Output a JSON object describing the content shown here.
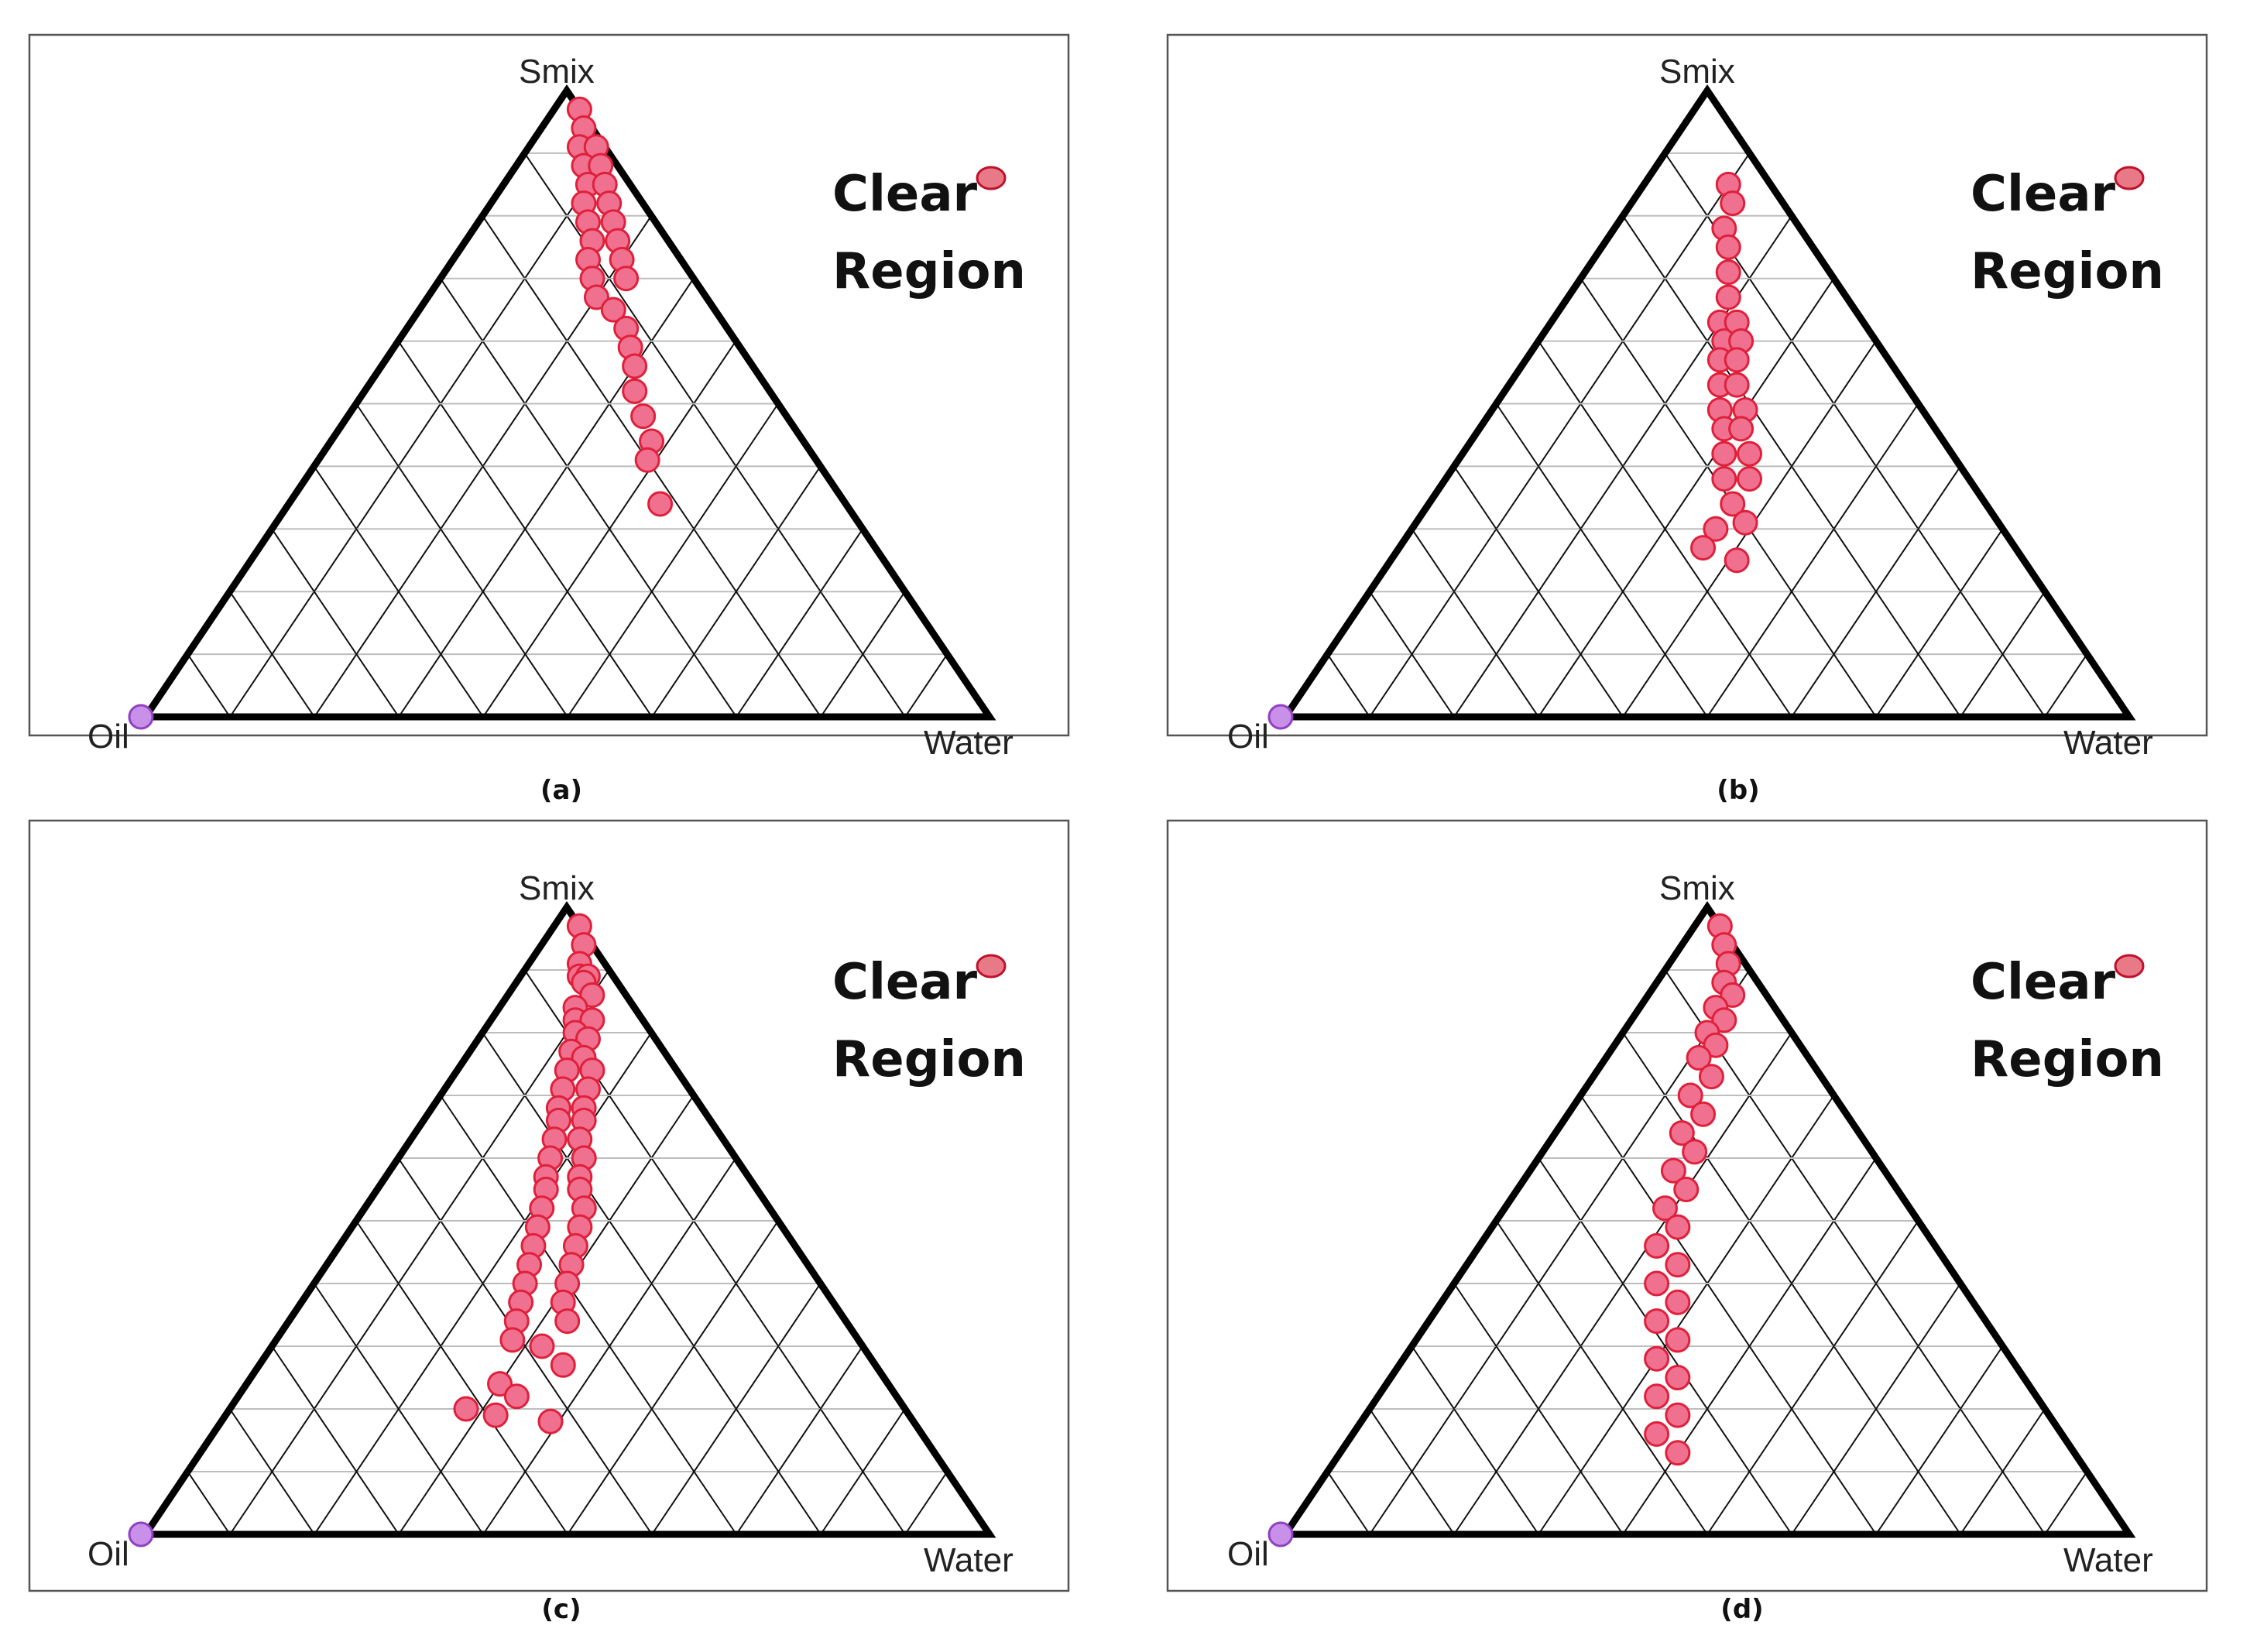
{
  "colors": {
    "point_fill": "#f07090",
    "point_stroke": "#e0203a",
    "oil_point": "#c890e8",
    "edge": "#000000"
  },
  "chart_data": [
    {
      "type": "ternary-scatter",
      "caption": "(a)",
      "vertices": {
        "top": "Smix",
        "left": "Oil",
        "right": "Water"
      },
      "legend": {
        "line1": "Clear",
        "line2": "Region"
      },
      "grid_step": 0.1,
      "points": [
        [
          0.97,
          0.03
        ],
        [
          0.94,
          0.05
        ],
        [
          0.91,
          0.06
        ],
        [
          0.91,
          0.08
        ],
        [
          0.88,
          0.08
        ],
        [
          0.88,
          0.1
        ],
        [
          0.85,
          0.1
        ],
        [
          0.85,
          0.12
        ],
        [
          0.82,
          0.11
        ],
        [
          0.82,
          0.14
        ],
        [
          0.79,
          0.13
        ],
        [
          0.79,
          0.16
        ],
        [
          0.76,
          0.15
        ],
        [
          0.76,
          0.18
        ],
        [
          0.73,
          0.16
        ],
        [
          0.73,
          0.2
        ],
        [
          0.7,
          0.18
        ],
        [
          0.7,
          0.22
        ],
        [
          0.67,
          0.2
        ],
        [
          0.65,
          0.23
        ],
        [
          0.62,
          0.26
        ],
        [
          0.59,
          0.28
        ],
        [
          0.56,
          0.3
        ],
        [
          0.52,
          0.32
        ],
        [
          0.48,
          0.35
        ],
        [
          0.44,
          0.38
        ],
        [
          0.41,
          0.39
        ],
        [
          0.34,
          0.44
        ]
      ],
      "oil_point": [
        0,
        0
      ]
    },
    {
      "type": "ternary-scatter",
      "caption": "(b)",
      "vertices": {
        "top": "Smix",
        "left": "Oil",
        "right": "Water"
      },
      "legend": {
        "line1": "Clear",
        "line2": "Region"
      },
      "grid_step": 0.1,
      "points": [
        [
          0.85,
          0.1
        ],
        [
          0.82,
          0.12
        ],
        [
          0.78,
          0.13
        ],
        [
          0.75,
          0.15
        ],
        [
          0.71,
          0.17
        ],
        [
          0.67,
          0.19
        ],
        [
          0.63,
          0.2
        ],
        [
          0.6,
          0.22
        ],
        [
          0.63,
          0.22
        ],
        [
          0.6,
          0.24
        ],
        [
          0.57,
          0.23
        ],
        [
          0.57,
          0.25
        ],
        [
          0.53,
          0.25
        ],
        [
          0.53,
          0.27
        ],
        [
          0.49,
          0.27
        ],
        [
          0.49,
          0.3
        ],
        [
          0.46,
          0.29
        ],
        [
          0.46,
          0.31
        ],
        [
          0.42,
          0.31
        ],
        [
          0.42,
          0.34
        ],
        [
          0.38,
          0.33
        ],
        [
          0.38,
          0.36
        ],
        [
          0.34,
          0.36
        ],
        [
          0.31,
          0.39
        ],
        [
          0.3,
          0.36
        ],
        [
          0.27,
          0.36
        ],
        [
          0.25,
          0.41
        ]
      ],
      "oil_point": [
        0,
        0
      ]
    },
    {
      "type": "ternary-scatter",
      "caption": "(c)",
      "vertices": {
        "top": "Smix",
        "left": "Oil",
        "right": "Water"
      },
      "legend": {
        "line1": "Clear",
        "line2": "Region"
      },
      "grid_step": 0.1,
      "points": [
        [
          0.97,
          0.03
        ],
        [
          0.94,
          0.05
        ],
        [
          0.91,
          0.06
        ],
        [
          0.89,
          0.07
        ],
        [
          0.89,
          0.08
        ],
        [
          0.88,
          0.08
        ],
        [
          0.86,
          0.1
        ],
        [
          0.84,
          0.09
        ],
        [
          0.82,
          0.1
        ],
        [
          0.82,
          0.12
        ],
        [
          0.8,
          0.11
        ],
        [
          0.79,
          0.13
        ],
        [
          0.77,
          0.12
        ],
        [
          0.76,
          0.14
        ],
        [
          0.74,
          0.13
        ],
        [
          0.74,
          0.16
        ],
        [
          0.71,
          0.14
        ],
        [
          0.71,
          0.17
        ],
        [
          0.68,
          0.15
        ],
        [
          0.68,
          0.18
        ],
        [
          0.66,
          0.16
        ],
        [
          0.66,
          0.19
        ],
        [
          0.63,
          0.17
        ],
        [
          0.63,
          0.2
        ],
        [
          0.6,
          0.18
        ],
        [
          0.6,
          0.22
        ],
        [
          0.57,
          0.19
        ],
        [
          0.57,
          0.23
        ],
        [
          0.55,
          0.2
        ],
        [
          0.55,
          0.24
        ],
        [
          0.52,
          0.21
        ],
        [
          0.52,
          0.26
        ],
        [
          0.49,
          0.22
        ],
        [
          0.49,
          0.27
        ],
        [
          0.46,
          0.23
        ],
        [
          0.46,
          0.28
        ],
        [
          0.43,
          0.24
        ],
        [
          0.43,
          0.29
        ],
        [
          0.4,
          0.25
        ],
        [
          0.4,
          0.3
        ],
        [
          0.37,
          0.26
        ],
        [
          0.37,
          0.31
        ],
        [
          0.34,
          0.27
        ],
        [
          0.34,
          0.33
        ],
        [
          0.31,
          0.28
        ],
        [
          0.3,
          0.32
        ],
        [
          0.27,
          0.36
        ],
        [
          0.24,
          0.3
        ],
        [
          0.22,
          0.33
        ],
        [
          0.2,
          0.28
        ],
        [
          0.19,
          0.32
        ],
        [
          0.18,
          0.39
        ]
      ],
      "oil_point": [
        0,
        0
      ]
    },
    {
      "type": "ternary-scatter",
      "caption": "(d)",
      "vertices": {
        "top": "Smix",
        "left": "Oil",
        "right": "Water"
      },
      "legend": {
        "line1": "Clear",
        "line2": "Region"
      },
      "grid_step": 0.1,
      "points": [
        [
          0.97,
          0.03
        ],
        [
          0.94,
          0.05
        ],
        [
          0.91,
          0.07
        ],
        [
          0.88,
          0.08
        ],
        [
          0.86,
          0.1
        ],
        [
          0.84,
          0.09
        ],
        [
          0.82,
          0.11
        ],
        [
          0.8,
          0.1
        ],
        [
          0.78,
          0.12
        ],
        [
          0.76,
          0.11
        ],
        [
          0.73,
          0.14
        ],
        [
          0.7,
          0.13
        ],
        [
          0.67,
          0.16
        ],
        [
          0.64,
          0.15
        ],
        [
          0.61,
          0.18
        ],
        [
          0.58,
          0.17
        ],
        [
          0.55,
          0.2
        ],
        [
          0.52,
          0.19
        ],
        [
          0.49,
          0.22
        ],
        [
          0.46,
          0.21
        ],
        [
          0.43,
          0.25
        ],
        [
          0.4,
          0.24
        ],
        [
          0.37,
          0.28
        ],
        [
          0.34,
          0.27
        ],
        [
          0.31,
          0.31
        ],
        [
          0.28,
          0.3
        ],
        [
          0.25,
          0.34
        ],
        [
          0.22,
          0.33
        ],
        [
          0.19,
          0.37
        ],
        [
          0.16,
          0.36
        ],
        [
          0.13,
          0.4
        ]
      ],
      "oil_point": [
        0,
        0
      ]
    }
  ]
}
